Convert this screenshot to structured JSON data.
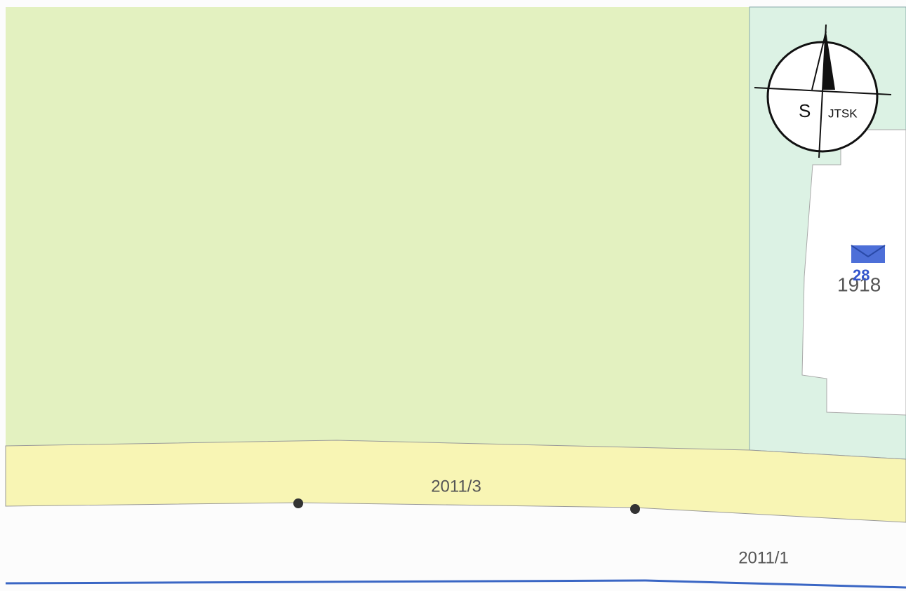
{
  "compass": {
    "letter": "S",
    "system": "JTSK"
  },
  "building": {
    "house_number": "28",
    "parcel": "1918"
  },
  "parcels": {
    "strip": "2011/3",
    "road": "2011/1"
  }
}
